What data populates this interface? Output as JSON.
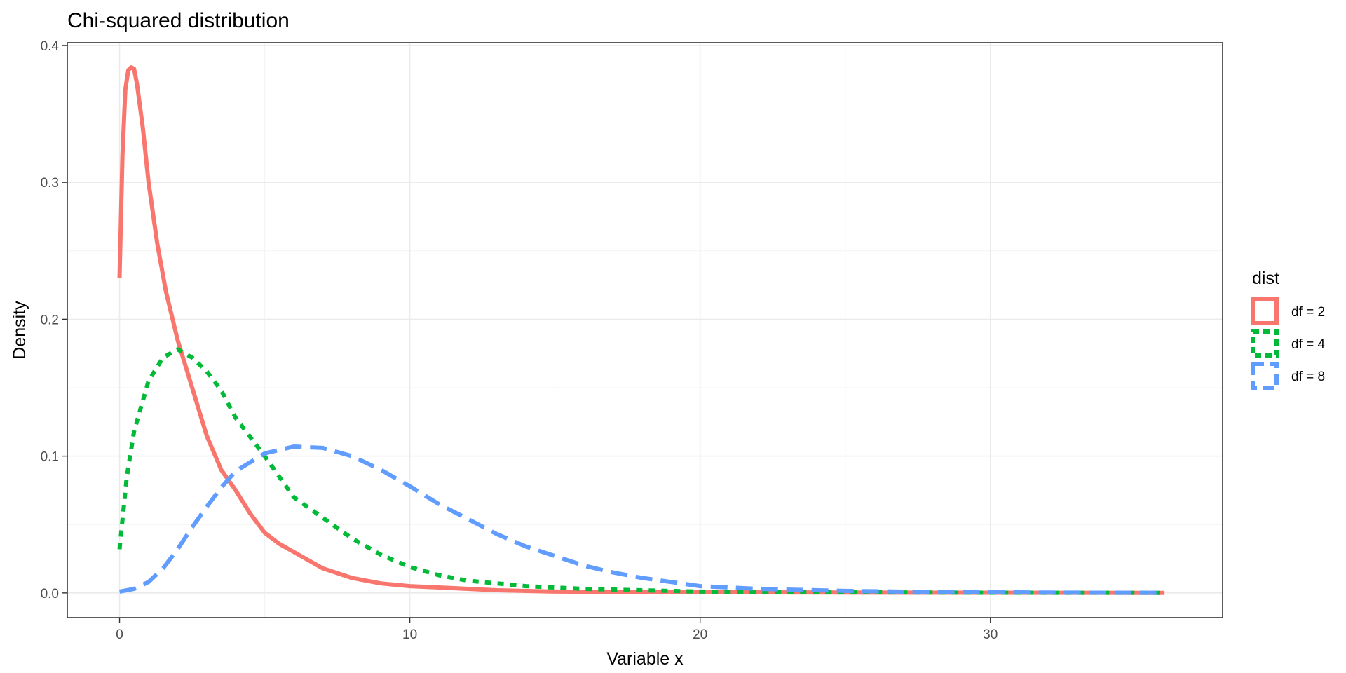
{
  "chart_data": {
    "type": "line",
    "title": "Chi-squared distribution",
    "xlabel": "Variable x",
    "ylabel": "Density",
    "xlim": [
      -1.8,
      38
    ],
    "ylim": [
      -0.018,
      0.402
    ],
    "x_ticks": [
      0,
      10,
      20,
      30
    ],
    "x_tick_labels": [
      "0",
      "10",
      "20",
      "30"
    ],
    "y_ticks": [
      0.0,
      0.1,
      0.2,
      0.3,
      0.4
    ],
    "y_tick_labels": [
      "0.0",
      "0.1",
      "0.2",
      "0.3",
      "0.4"
    ],
    "grid": true,
    "legend": {
      "title": "dist",
      "position": "right"
    },
    "series": [
      {
        "name": "df = 2",
        "color": "#F8766D",
        "dash": "solid",
        "x": [
          0,
          0.1,
          0.2,
          0.3,
          0.4,
          0.5,
          0.6,
          0.8,
          1.0,
          1.3,
          1.6,
          2.0,
          2.5,
          3.0,
          3.5,
          4.0,
          4.5,
          5.0,
          5.5,
          6.0,
          7.0,
          8.0,
          9.0,
          10.0,
          11.0,
          12.0,
          13.0,
          15.0,
          20.0,
          25.0,
          30.0,
          36.0
        ],
        "y": [
          0.23,
          0.32,
          0.368,
          0.382,
          0.384,
          0.383,
          0.372,
          0.34,
          0.3,
          0.255,
          0.22,
          0.185,
          0.15,
          0.115,
          0.09,
          0.075,
          0.058,
          0.044,
          0.036,
          0.03,
          0.018,
          0.011,
          0.007,
          0.005,
          0.004,
          0.003,
          0.002,
          0.001,
          0.0005,
          0.0003,
          0.0002,
          0.0001
        ]
      },
      {
        "name": "df = 4",
        "color": "#00BA38",
        "dash": "dotted",
        "x": [
          0,
          0.25,
          0.5,
          1.0,
          1.5,
          2.0,
          2.5,
          3.0,
          3.5,
          4.0,
          5.0,
          6.0,
          7.0,
          8.0,
          9.0,
          10.0,
          11.0,
          12.0,
          14.0,
          16.0,
          18.0,
          20.0,
          25.0,
          30.0,
          36.0
        ],
        "y": [
          0.032,
          0.085,
          0.118,
          0.155,
          0.172,
          0.178,
          0.172,
          0.162,
          0.148,
          0.128,
          0.1,
          0.07,
          0.055,
          0.04,
          0.028,
          0.019,
          0.013,
          0.009,
          0.005,
          0.003,
          0.002,
          0.001,
          0.0005,
          0.0002,
          0.0001
        ]
      },
      {
        "name": "df = 8",
        "color": "#619CFF",
        "dash": "dashed",
        "x": [
          0,
          0.5,
          1.0,
          1.5,
          2.0,
          2.5,
          3.0,
          3.5,
          4.0,
          5.0,
          6.0,
          7.0,
          8.0,
          9.0,
          10.0,
          11.0,
          12.0,
          13.0,
          14.0,
          15.0,
          16.0,
          17.0,
          18.0,
          19.0,
          20.0,
          22.0,
          25.0,
          28.0,
          32.0,
          36.0
        ],
        "y": [
          0.001,
          0.003,
          0.008,
          0.018,
          0.032,
          0.048,
          0.063,
          0.077,
          0.089,
          0.102,
          0.107,
          0.106,
          0.1,
          0.09,
          0.078,
          0.065,
          0.054,
          0.043,
          0.034,
          0.027,
          0.02,
          0.015,
          0.011,
          0.008,
          0.005,
          0.003,
          0.0015,
          0.0007,
          0.0003,
          0.0001
        ]
      }
    ]
  }
}
